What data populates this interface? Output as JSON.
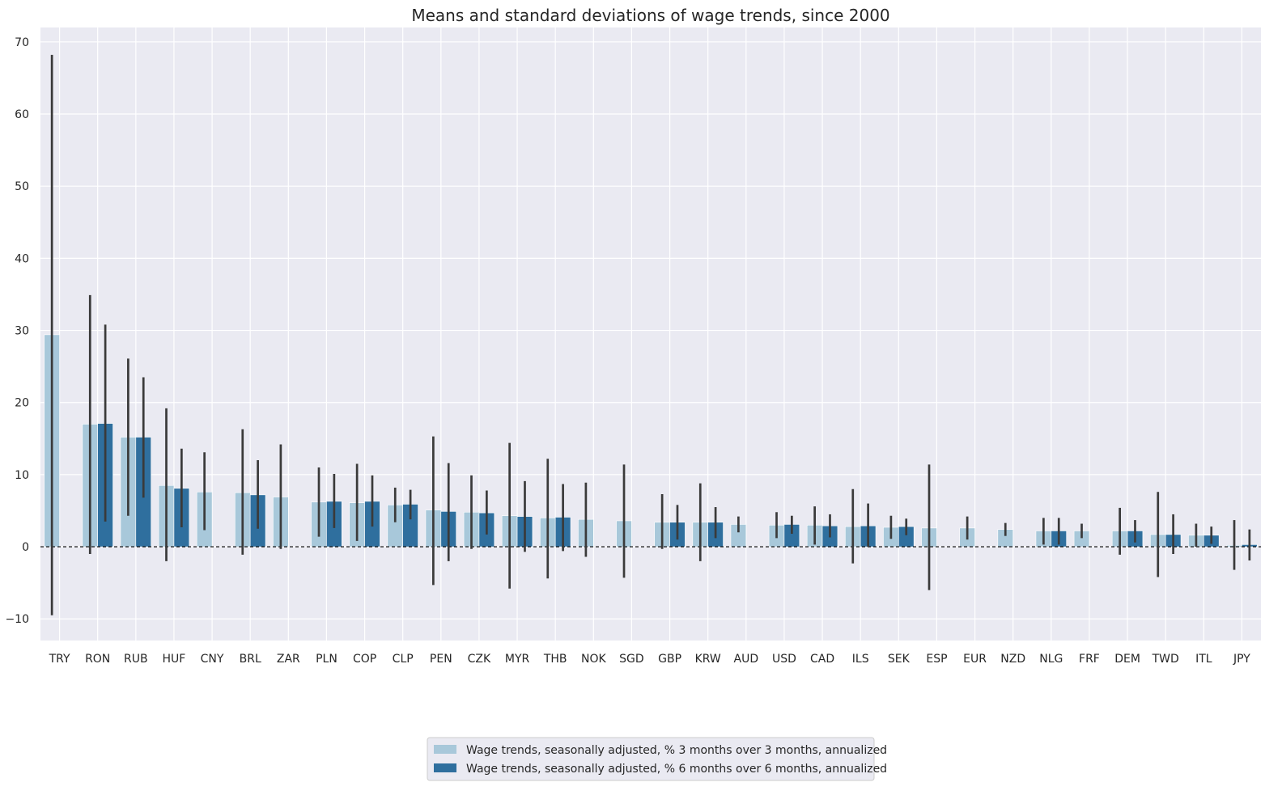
{
  "chart_data": {
    "type": "bar",
    "title": "Means and standard deviations of wage trends, since 2000",
    "xlabel": "",
    "ylabel": "",
    "ylim": [
      -13,
      72
    ],
    "yticks": [
      -10,
      0,
      10,
      20,
      30,
      40,
      50,
      60,
      70
    ],
    "grid": true,
    "legend_position": "bottom-center",
    "zero_line": "dashed",
    "categories": [
      "TRY",
      "RON",
      "RUB",
      "HUF",
      "CNY",
      "BRL",
      "ZAR",
      "PLN",
      "COP",
      "CLP",
      "PEN",
      "CZK",
      "MYR",
      "THB",
      "NOK",
      "SGD",
      "GBP",
      "KRW",
      "AUD",
      "USD",
      "CAD",
      "ILS",
      "SEK",
      "ESP",
      "EUR",
      "NZD",
      "NLG",
      "FRF",
      "DEM",
      "TWD",
      "ITL",
      "JPY"
    ],
    "series": [
      {
        "name": "Wage trends, seasonally adjusted, % 3 months over 3 months, annualized",
        "color": "#a8c8da",
        "values": [
          29.4,
          17.0,
          15.2,
          8.5,
          7.6,
          7.5,
          6.9,
          6.2,
          6.1,
          5.8,
          5.1,
          4.8,
          4.3,
          4.0,
          3.8,
          3.6,
          3.4,
          3.4,
          3.1,
          3.0,
          3.0,
          2.8,
          2.7,
          2.6,
          2.6,
          2.4,
          2.2,
          2.2,
          2.2,
          1.7,
          1.6,
          0.2
        ],
        "error_low": [
          -9.5,
          -1.0,
          4.3,
          -2.0,
          2.3,
          -1.1,
          -0.3,
          1.4,
          0.8,
          3.4,
          -5.3,
          -0.3,
          -5.8,
          -4.4,
          -1.4,
          -4.3,
          -0.3,
          -2.0,
          2.0,
          1.2,
          0.3,
          -2.3,
          1.1,
          -6.0,
          1.0,
          1.5,
          0.3,
          1.2,
          -1.1,
          -4.2,
          0.0,
          -3.2
        ],
        "error_high": [
          68.2,
          34.9,
          26.1,
          19.2,
          13.1,
          16.3,
          14.2,
          11.0,
          11.5,
          8.2,
          15.3,
          9.9,
          14.4,
          12.2,
          8.9,
          11.4,
          7.3,
          8.8,
          4.2,
          4.8,
          5.6,
          8.0,
          4.3,
          11.4,
          4.2,
          3.3,
          4.0,
          3.2,
          5.4,
          7.6,
          3.2,
          3.7
        ]
      },
      {
        "name": "Wage trends, seasonally adjusted, % 6 months over 6 months, annualized",
        "color": "#2f6f9e",
        "values": [
          null,
          17.1,
          15.2,
          8.1,
          null,
          7.2,
          null,
          6.3,
          6.3,
          5.9,
          4.9,
          4.7,
          4.2,
          4.1,
          null,
          null,
          3.4,
          3.4,
          null,
          3.1,
          2.9,
          2.9,
          2.8,
          null,
          null,
          null,
          2.2,
          null,
          2.2,
          1.7,
          1.6,
          0.3
        ],
        "error_low": [
          null,
          3.5,
          6.8,
          2.7,
          null,
          2.5,
          null,
          2.6,
          2.8,
          3.8,
          -2.0,
          1.7,
          -0.7,
          -0.6,
          null,
          null,
          1.0,
          1.2,
          null,
          1.8,
          1.3,
          0.0,
          1.6,
          null,
          null,
          null,
          0.3,
          null,
          0.6,
          -1.0,
          0.4,
          -1.9
        ],
        "error_high": [
          null,
          30.8,
          23.5,
          13.6,
          null,
          12.0,
          null,
          10.1,
          9.9,
          7.9,
          11.6,
          7.8,
          9.1,
          8.7,
          null,
          null,
          5.8,
          5.5,
          null,
          4.3,
          4.5,
          6.0,
          3.9,
          null,
          null,
          null,
          4.0,
          null,
          3.7,
          4.5,
          2.8,
          2.4
        ]
      }
    ]
  }
}
